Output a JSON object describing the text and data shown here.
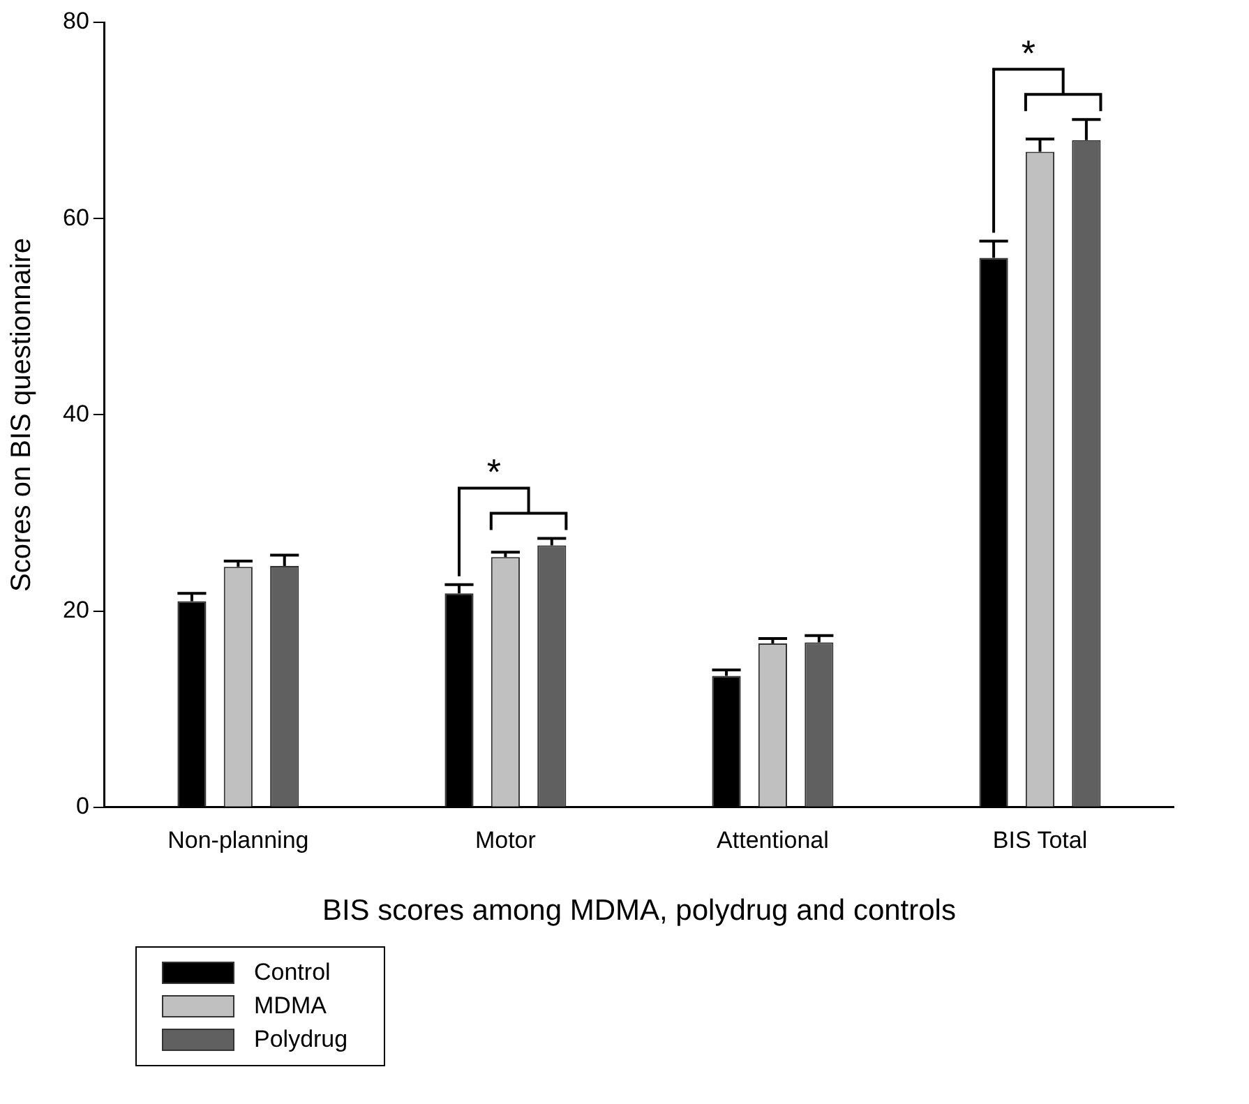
{
  "chart_data": {
    "type": "bar",
    "xlabel": "BIS scores among MDMA, polydrug and controls",
    "ylabel": "Scores on BIS questionnaire",
    "categories": [
      "Non-planning",
      "Motor",
      "Attentional",
      "BIS Total"
    ],
    "series": [
      {
        "name": "Control",
        "color": "#000000",
        "values": [
          21.0,
          21.8,
          13.4,
          56.0
        ],
        "errors": [
          0.8,
          0.9,
          0.6,
          1.7
        ]
      },
      {
        "name": "MDMA",
        "color": "#c0c0c0",
        "values": [
          24.5,
          25.5,
          16.7,
          66.8
        ],
        "errors": [
          0.6,
          0.5,
          0.5,
          1.3
        ]
      },
      {
        "name": "Polydrug",
        "color": "#606060",
        "values": [
          24.6,
          26.7,
          16.8,
          68.0
        ],
        "errors": [
          1.1,
          0.7,
          0.7,
          2.1
        ]
      }
    ],
    "ylim": [
      0,
      80
    ],
    "yticks": [
      0,
      20,
      40,
      60,
      80
    ],
    "grid": false,
    "legend": "bottom left",
    "annotations": [
      "*",
      "*"
    ]
  }
}
